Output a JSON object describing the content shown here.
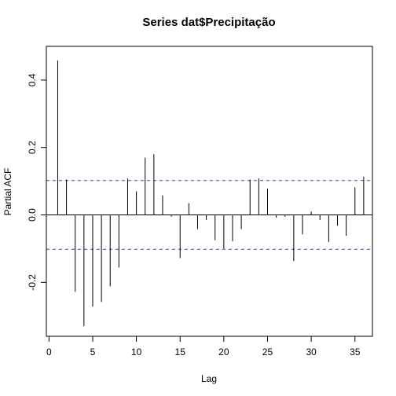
{
  "chart_data": {
    "type": "bar",
    "subtype": "pacf",
    "title": "Series  dat$Precipitação",
    "xlabel": "Lag",
    "ylabel": "Partial ACF",
    "xlim": [
      -0.3,
      37
    ],
    "ylim": [
      -0.36,
      0.5
    ],
    "x_ticks": [
      0,
      5,
      10,
      15,
      20,
      25,
      30,
      35
    ],
    "x_tick_labels": [
      "0",
      "5",
      "10",
      "15",
      "20",
      "25",
      "30",
      "35"
    ],
    "y_ticks": [
      -0.2,
      0.0,
      0.2,
      0.4
    ],
    "y_tick_labels": [
      "-0.2",
      "0.0",
      "0.2",
      "0.4"
    ],
    "confidence_bound": 0.102,
    "confidence_color": "#3b3bd6",
    "lags": [
      1,
      2,
      3,
      4,
      5,
      6,
      7,
      8,
      9,
      10,
      11,
      12,
      13,
      14,
      15,
      16,
      17,
      18,
      19,
      20,
      21,
      22,
      23,
      24,
      25,
      26,
      27,
      28,
      29,
      30,
      31,
      32,
      33,
      34,
      35,
      36
    ],
    "values": [
      0.458,
      0.105,
      -0.228,
      -0.33,
      -0.272,
      -0.258,
      -0.212,
      -0.156,
      0.108,
      0.07,
      0.17,
      0.18,
      0.058,
      -0.005,
      -0.128,
      0.035,
      -0.042,
      -0.015,
      -0.075,
      -0.1,
      -0.078,
      -0.042,
      0.105,
      0.108,
      0.078,
      -0.008,
      -0.005,
      -0.137,
      -0.058,
      0.01,
      -0.015,
      -0.08,
      -0.032,
      -0.062,
      0.082,
      0.113
    ],
    "grid": false
  }
}
